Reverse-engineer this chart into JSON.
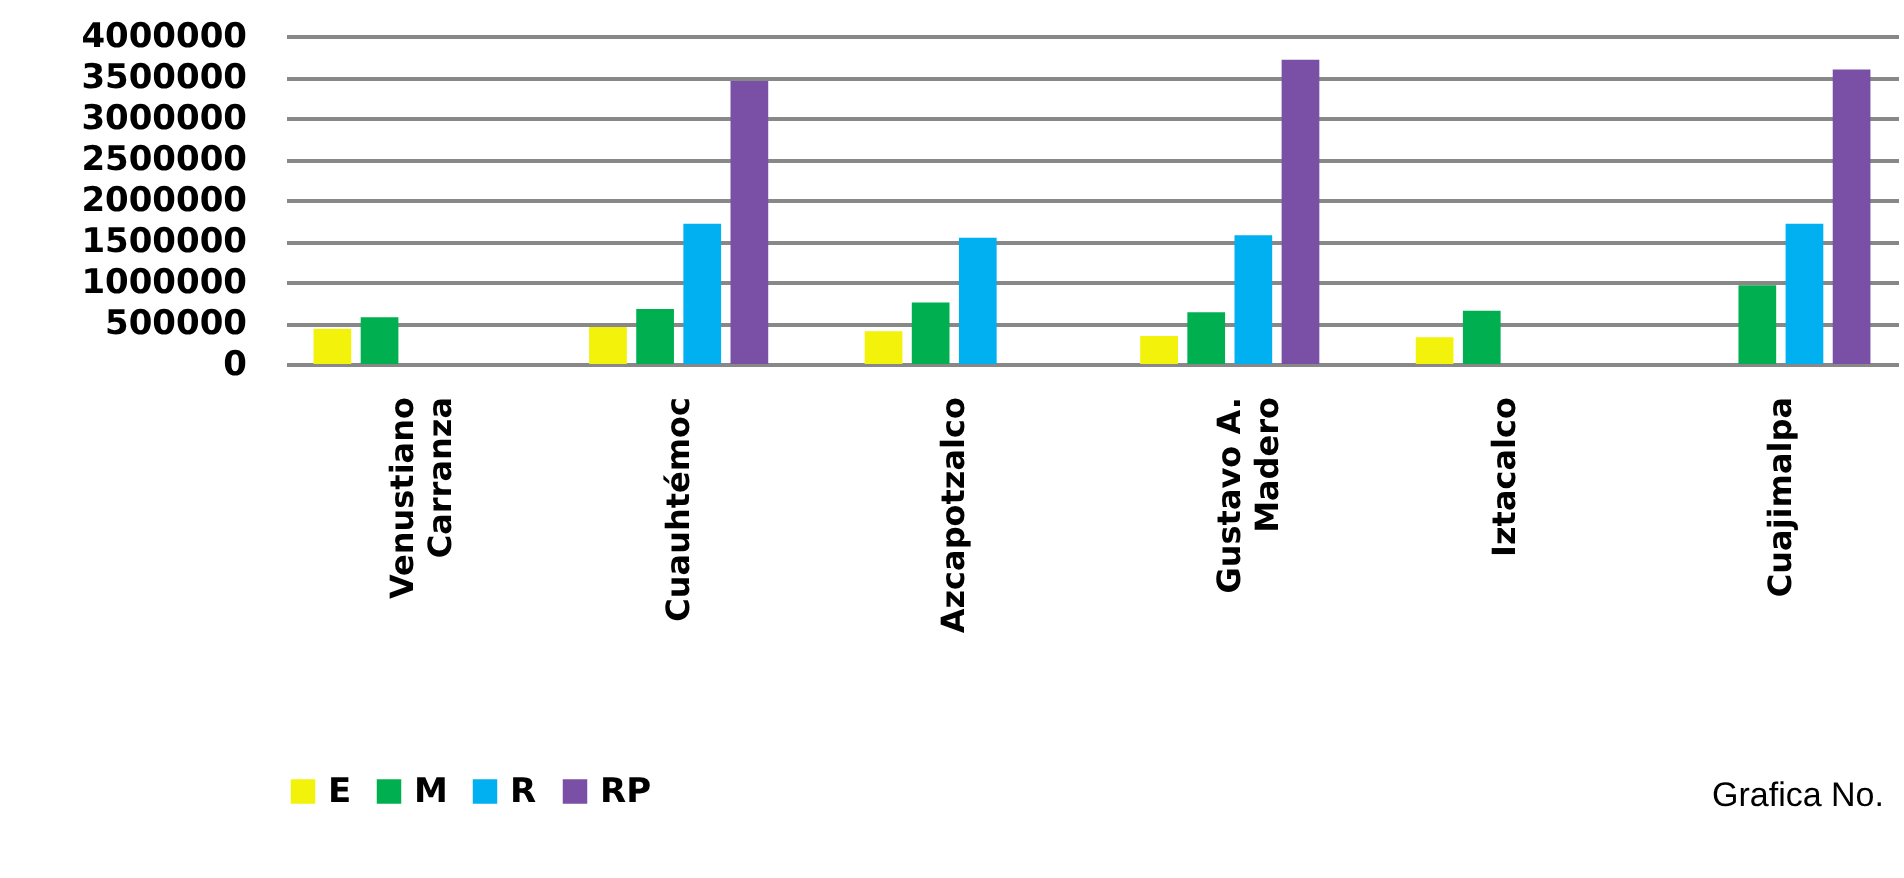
{
  "chart_data": {
    "type": "bar",
    "categories": [
      "Venustiano Carranza",
      "Cuauhtémoc",
      "Azcapotzalco",
      "Gustavo A. Madero",
      "Iztacalco",
      "Cuajimalpa"
    ],
    "series": [
      {
        "name": "E",
        "color": "#f2f20a",
        "values": [
          430000,
          450000,
          400000,
          340000,
          325000,
          null
        ]
      },
      {
        "name": "M",
        "color": "#00b050",
        "values": [
          570000,
          670000,
          750000,
          630000,
          650000,
          960000
        ]
      },
      {
        "name": "R",
        "color": "#00b0f0",
        "values": [
          null,
          1710000,
          1540000,
          1570000,
          null,
          1710000
        ]
      },
      {
        "name": "RP",
        "color": "#7a4fa6",
        "values": [
          null,
          3450000,
          null,
          3710000,
          null,
          3590000
        ]
      }
    ],
    "ylim": [
      0,
      4000000
    ],
    "yticks": [
      0,
      500000,
      1000000,
      1500000,
      2000000,
      2500000,
      3000000,
      3500000,
      4000000
    ],
    "grid": "y",
    "legend": "bottom",
    "annotations": [
      "Grafica No."
    ]
  }
}
